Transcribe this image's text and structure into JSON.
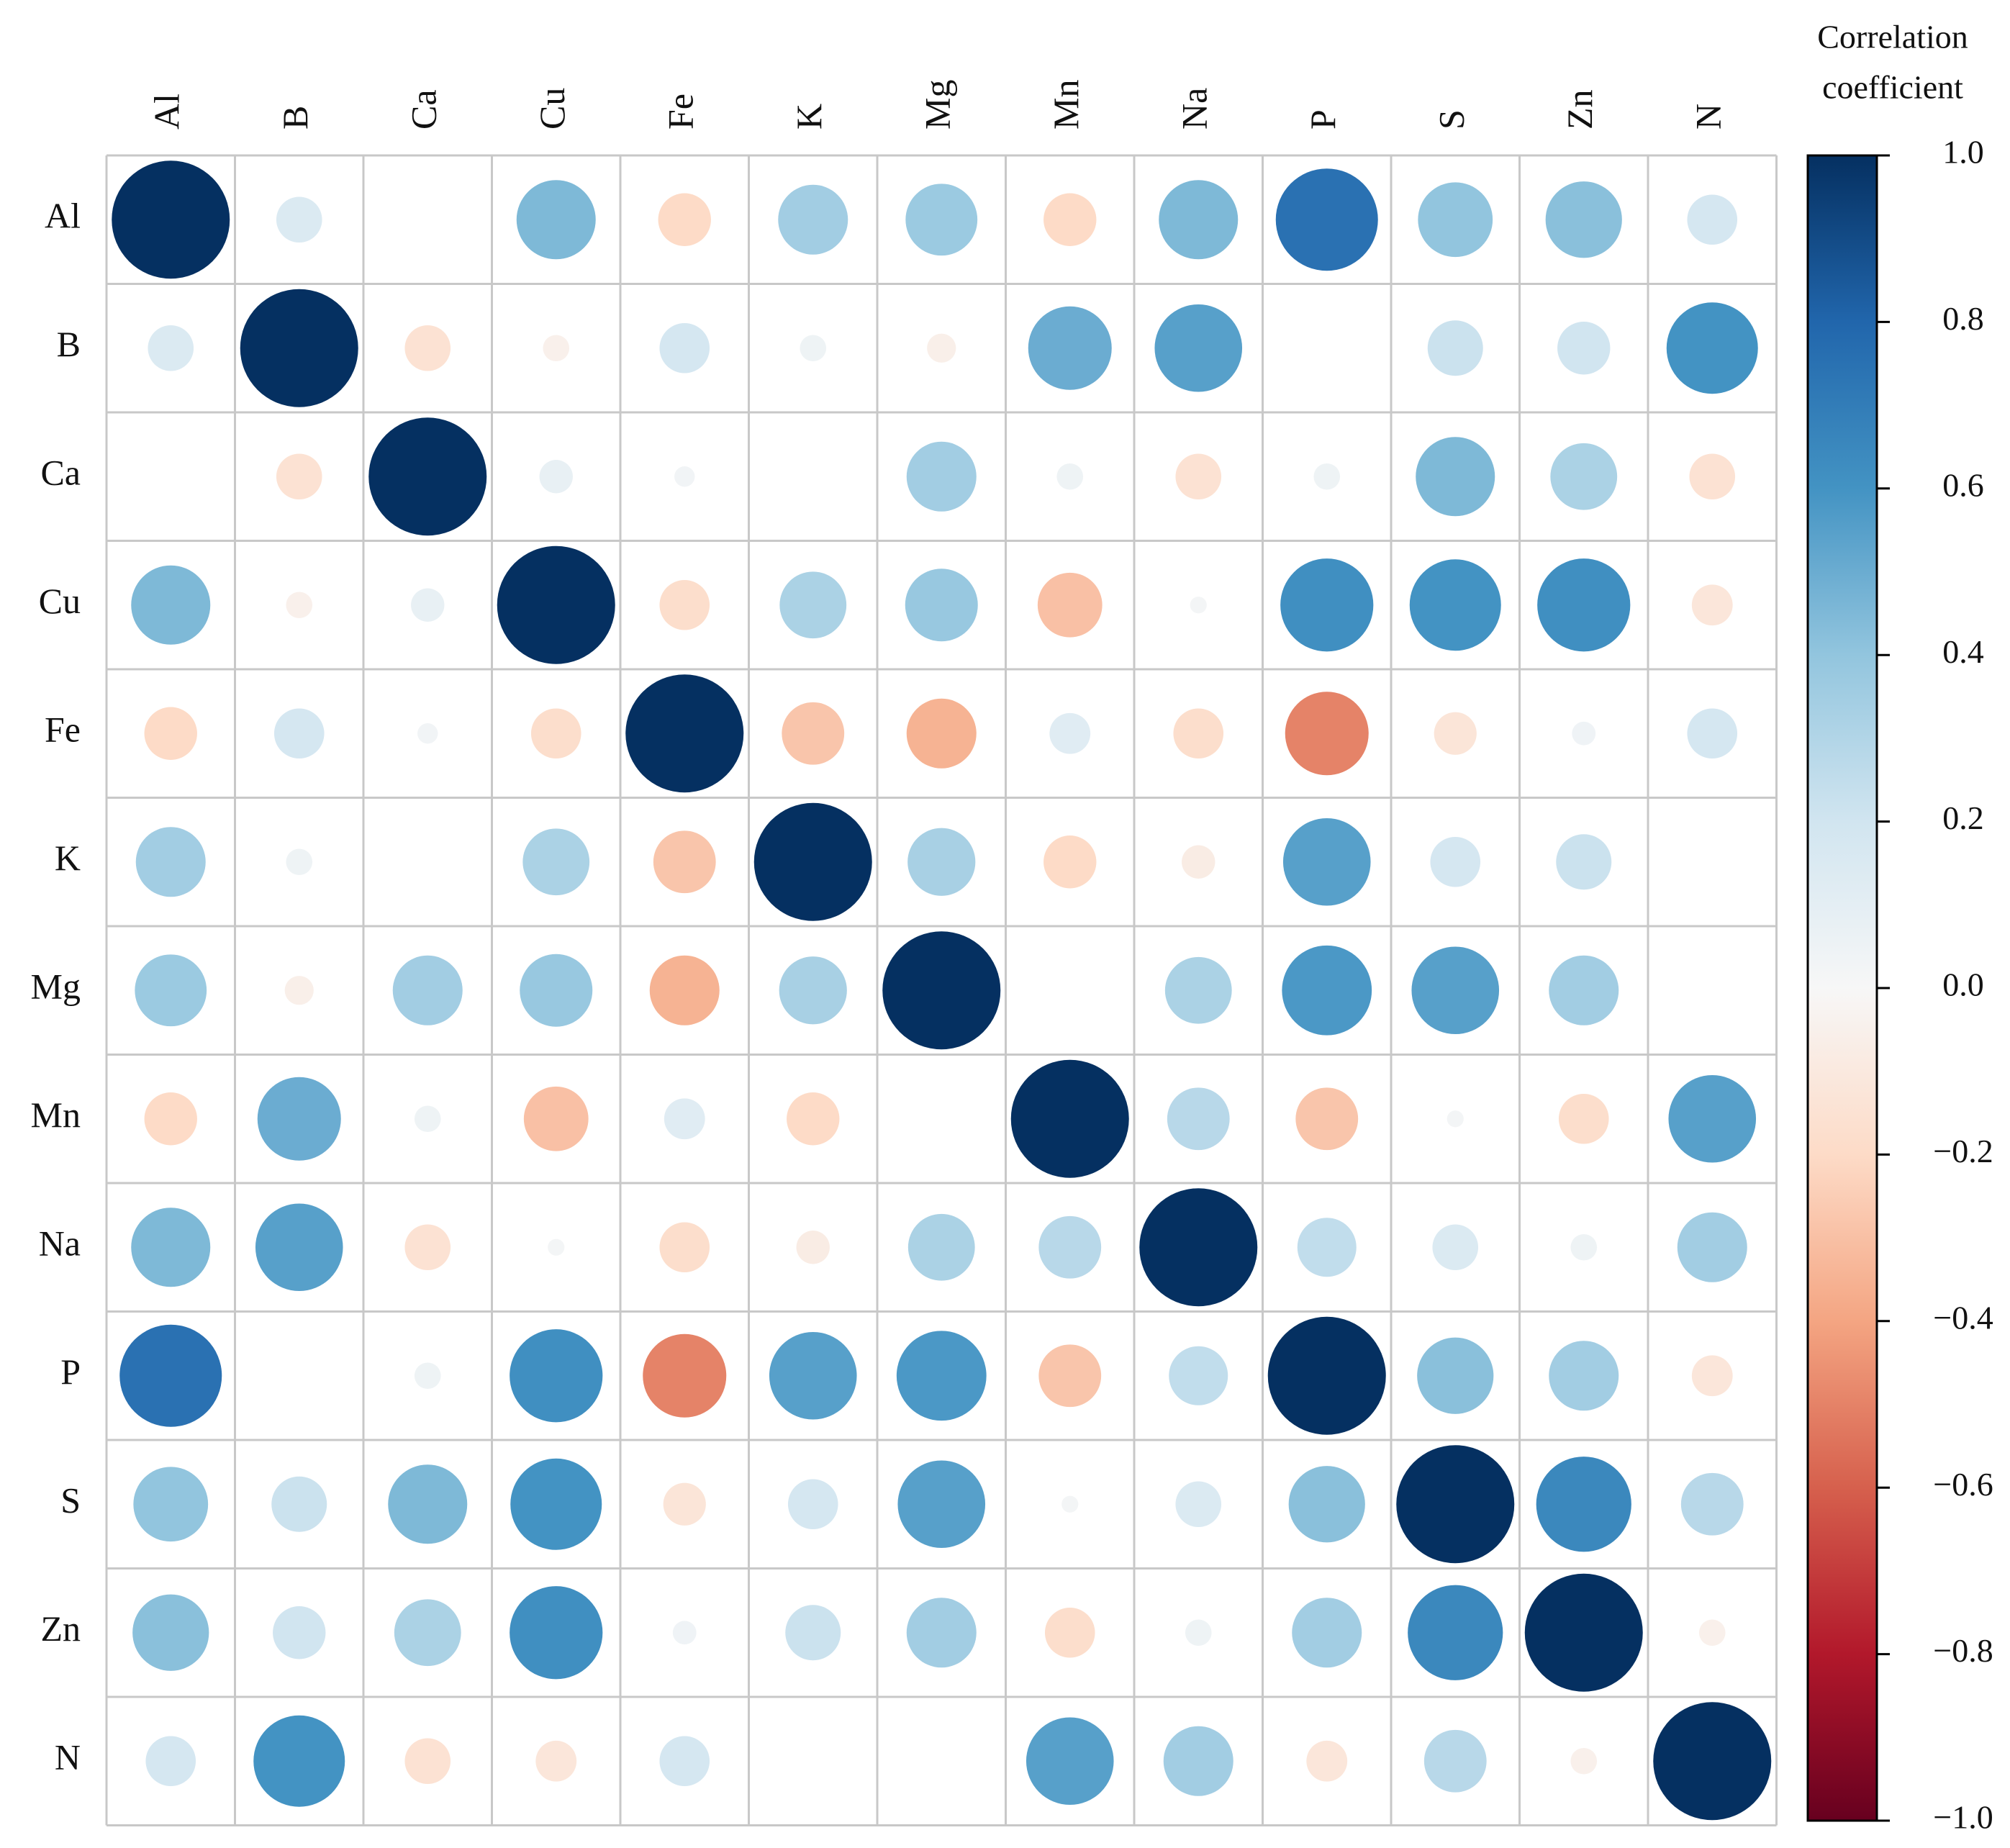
{
  "chart_data": {
    "type": "heatmap",
    "style": "circle-correlation-matrix",
    "variables": [
      "Al",
      "B",
      "Ca",
      "Cu",
      "Fe",
      "K",
      "Mg",
      "Mn",
      "Na",
      "P",
      "S",
      "Zn",
      "N"
    ],
    "matrix": [
      [
        1.0,
        0.15,
        0.0,
        0.45,
        -0.2,
        0.35,
        0.37,
        -0.2,
        0.45,
        0.75,
        0.4,
        0.42,
        0.18
      ],
      [
        0.15,
        1.0,
        -0.15,
        -0.05,
        0.18,
        0.05,
        -0.06,
        0.5,
        0.55,
        0.0,
        0.22,
        0.2,
        0.6
      ],
      [
        0.0,
        -0.15,
        1.0,
        0.08,
        0.03,
        0.0,
        0.35,
        0.05,
        -0.15,
        0.05,
        0.45,
        0.32,
        -0.15
      ],
      [
        0.45,
        -0.05,
        0.08,
        1.0,
        -0.18,
        0.32,
        0.38,
        -0.3,
        0.02,
        0.62,
        0.6,
        0.62,
        -0.12
      ],
      [
        -0.2,
        0.18,
        0.03,
        -0.18,
        1.0,
        -0.28,
        -0.35,
        0.12,
        -0.18,
        -0.5,
        -0.13,
        0.04,
        0.18
      ],
      [
        0.35,
        0.05,
        0.0,
        0.32,
        -0.28,
        1.0,
        0.33,
        -0.2,
        -0.08,
        0.55,
        0.18,
        0.22,
        0.0
      ],
      [
        0.37,
        -0.06,
        0.35,
        0.38,
        -0.35,
        0.33,
        1.0,
        0.0,
        0.32,
        0.58,
        0.55,
        0.35,
        0.0
      ],
      [
        -0.2,
        0.5,
        0.05,
        -0.3,
        0.12,
        -0.2,
        0.0,
        1.0,
        0.28,
        -0.28,
        0.02,
        -0.18,
        0.55
      ],
      [
        0.45,
        0.55,
        -0.15,
        0.02,
        -0.18,
        -0.08,
        0.32,
        0.28,
        1.0,
        0.25,
        0.15,
        0.05,
        0.35
      ],
      [
        0.75,
        0.0,
        0.05,
        0.62,
        -0.5,
        0.55,
        0.58,
        -0.28,
        0.25,
        1.0,
        0.42,
        0.35,
        -0.12
      ],
      [
        0.4,
        0.22,
        0.45,
        0.6,
        -0.13,
        0.18,
        0.55,
        0.02,
        0.15,
        0.42,
        1.0,
        0.65,
        0.28
      ],
      [
        0.42,
        0.2,
        0.32,
        0.62,
        0.04,
        0.22,
        0.35,
        -0.18,
        0.05,
        0.35,
        0.65,
        1.0,
        -0.05
      ],
      [
        0.18,
        0.6,
        -0.15,
        -0.12,
        0.18,
        0.0,
        0.0,
        0.55,
        0.35,
        -0.12,
        0.28,
        -0.05,
        1.0
      ]
    ],
    "colorbar": {
      "title_lines": [
        "Correlation",
        "coefficient"
      ],
      "range": [
        -1.0,
        1.0
      ],
      "ticks": [
        1.0,
        0.8,
        0.6,
        0.4,
        0.2,
        0.0,
        -0.2,
        -0.4,
        -0.6,
        -0.8,
        -1.0
      ],
      "tick_labels": [
        "1.0",
        "0.8",
        "0.6",
        "0.4",
        "0.2",
        "0.0",
        "−0.2",
        "−0.4",
        "−0.6",
        "−0.8",
        "−1.0"
      ],
      "colors": [
        {
          "v": -1.0,
          "c": "#67001f"
        },
        {
          "v": -0.8,
          "c": "#b2182b"
        },
        {
          "v": -0.6,
          "c": "#d6604d"
        },
        {
          "v": -0.4,
          "c": "#f4a582"
        },
        {
          "v": -0.2,
          "c": "#fddbc7"
        },
        {
          "v": 0.0,
          "c": "#f7f7f7"
        },
        {
          "v": 0.2,
          "c": "#d1e5f0"
        },
        {
          "v": 0.4,
          "c": "#92c5de"
        },
        {
          "v": 0.6,
          "c": "#4393c3"
        },
        {
          "v": 0.8,
          "c": "#2166ac"
        },
        {
          "v": 1.0,
          "c": "#053061"
        }
      ]
    },
    "grid_color": "#c8c8c8",
    "legend_position": "right"
  }
}
